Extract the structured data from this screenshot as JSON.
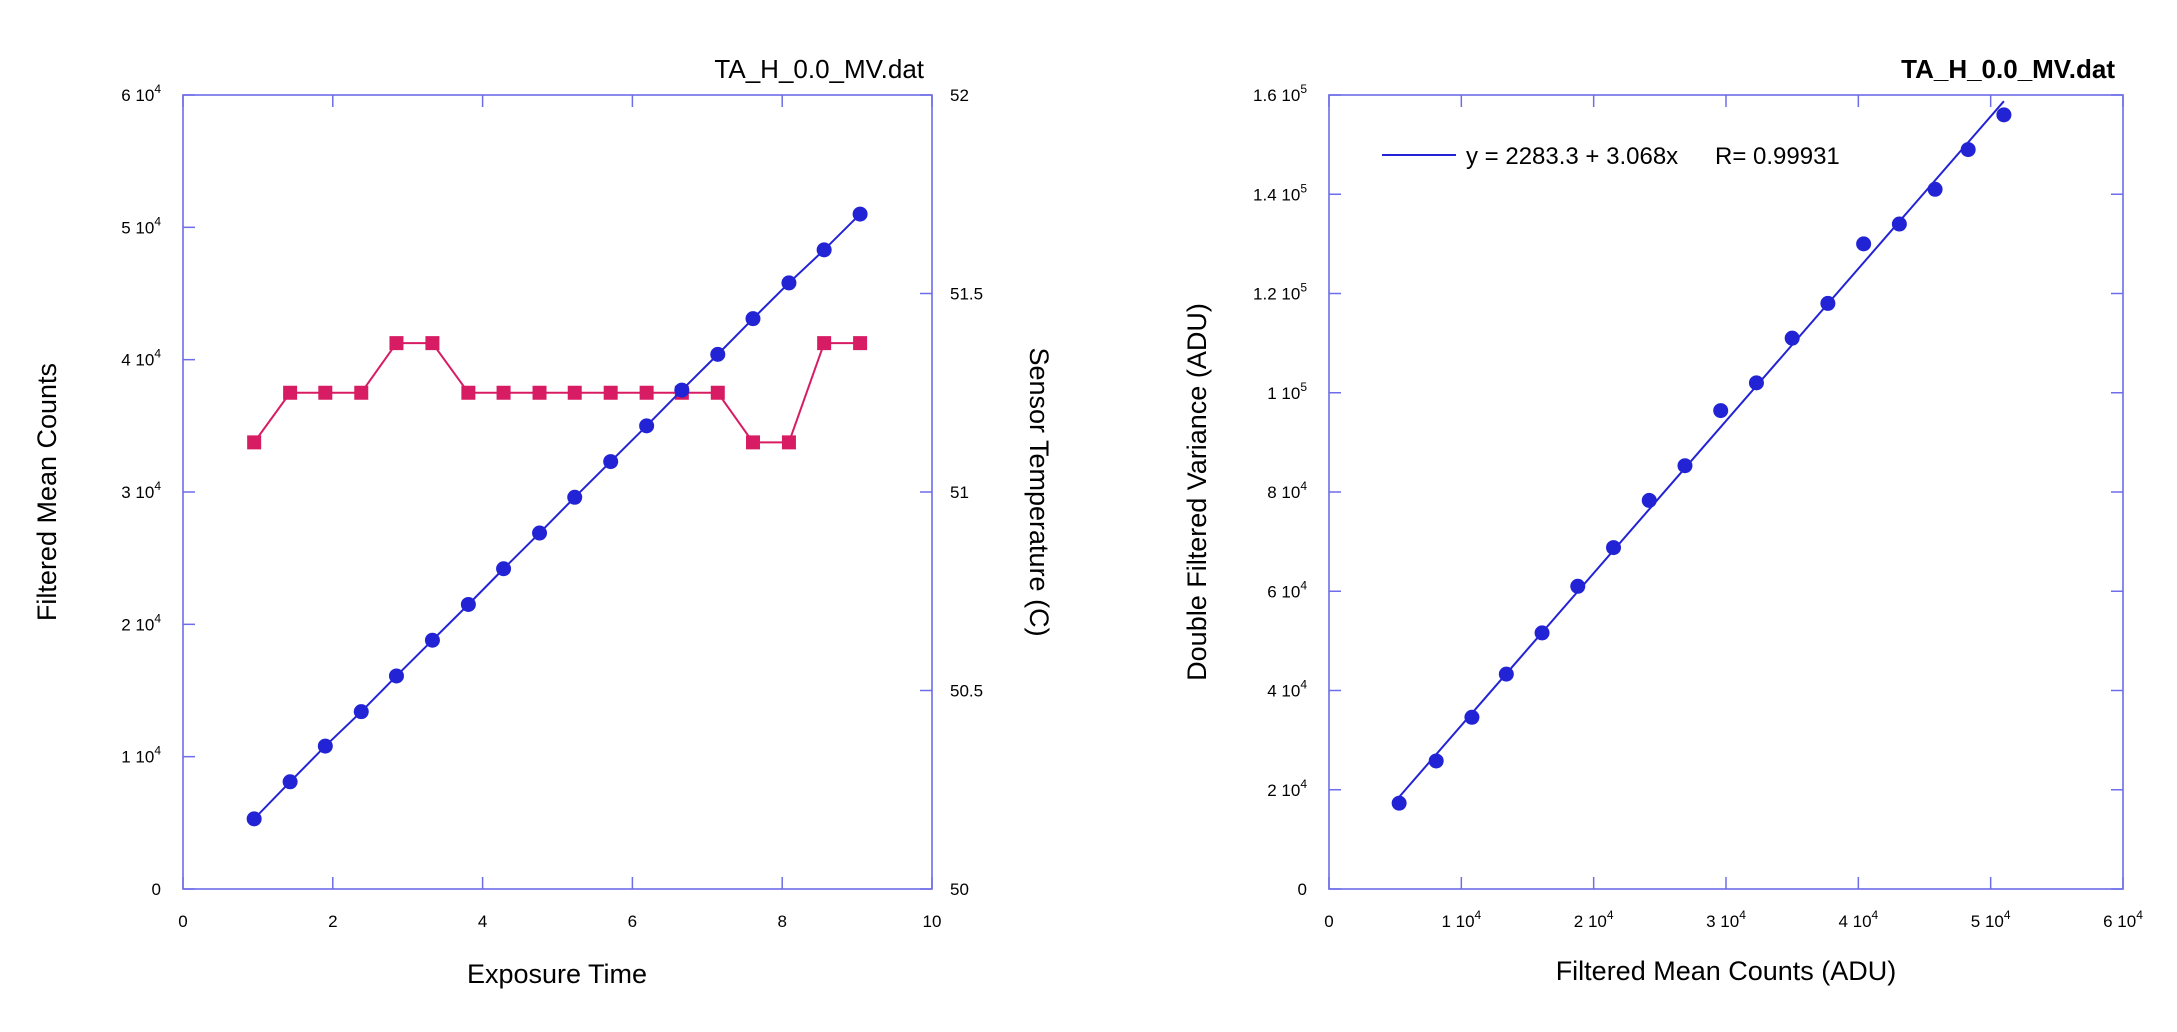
{
  "colors": {
    "frame": "#6d6de8",
    "series_counts": "#2323d6",
    "series_temperature": "#d81c64",
    "fit_line": "#2323d6",
    "fit_text": "#2323d6",
    "text": "#000000"
  },
  "chart_data": [
    {
      "type": "line",
      "title": "TA_H_0.0_MV.dat",
      "xlabel": "Exposure Time",
      "ylabel": "Filtered Mean Counts",
      "y2label": "Sensor Temperature (C)",
      "xlim": [
        0,
        10
      ],
      "ylim": [
        0,
        60000
      ],
      "y2lim": [
        50,
        52
      ],
      "x_ticks": [
        {
          "value": 0,
          "label": "0"
        },
        {
          "value": 2,
          "label": "2"
        },
        {
          "value": 4,
          "label": "4"
        },
        {
          "value": 6,
          "label": "6"
        },
        {
          "value": 8,
          "label": "8"
        },
        {
          "value": 10,
          "label": "10"
        }
      ],
      "y_ticks": [
        {
          "value": 0,
          "mantissa": "0",
          "exp": ""
        },
        {
          "value": 10000,
          "mantissa": "1 10",
          "exp": "4"
        },
        {
          "value": 20000,
          "mantissa": "2 10",
          "exp": "4"
        },
        {
          "value": 30000,
          "mantissa": "3 10",
          "exp": "4"
        },
        {
          "value": 40000,
          "mantissa": "4 10",
          "exp": "4"
        },
        {
          "value": 50000,
          "mantissa": "5 10",
          "exp": "4"
        },
        {
          "value": 60000,
          "mantissa": "6 10",
          "exp": "4"
        }
      ],
      "y2_ticks": [
        {
          "value": 50,
          "label": "50"
        },
        {
          "value": 50.5,
          "label": "50.5"
        },
        {
          "value": 51,
          "label": "51"
        },
        {
          "value": 51.5,
          "label": "51.5"
        },
        {
          "value": 52,
          "label": "52"
        }
      ],
      "series": [
        {
          "name": "Filtered Mean Counts",
          "axis": "left",
          "marker": "circle",
          "x": [
            0.95,
            1.43,
            1.9,
            2.38,
            2.85,
            3.33,
            3.81,
            4.28,
            4.76,
            5.23,
            5.71,
            6.19,
            6.66,
            7.14,
            7.61,
            8.09,
            8.56,
            9.04
          ],
          "y": [
            5300,
            8100,
            10800,
            13400,
            16100,
            18800,
            21500,
            24200,
            26900,
            29600,
            32300,
            35000,
            37700,
            40400,
            43100,
            45800,
            48300,
            51000
          ]
        },
        {
          "name": "Sensor Temperature",
          "axis": "right",
          "marker": "square",
          "x": [
            0.95,
            1.43,
            1.9,
            2.38,
            2.85,
            3.33,
            3.81,
            4.28,
            4.76,
            5.23,
            5.71,
            6.19,
            6.66,
            7.14,
            7.61,
            8.09,
            8.56,
            9.04
          ],
          "y": [
            51.125,
            51.25,
            51.25,
            51.25,
            51.375,
            51.375,
            51.25,
            51.25,
            51.25,
            51.25,
            51.25,
            51.25,
            51.25,
            51.25,
            51.125,
            51.125,
            51.375,
            51.375
          ]
        }
      ]
    },
    {
      "type": "scatter",
      "title": "TA_H_0.0_MV.dat",
      "xlabel": "Filtered Mean Counts (ADU)",
      "ylabel": "Double Filtered Variance (ADU)",
      "xlim": [
        0,
        60000
      ],
      "ylim": [
        0,
        160000
      ],
      "x_ticks": [
        {
          "value": 0,
          "mantissa": "0",
          "exp": ""
        },
        {
          "value": 10000,
          "mantissa": "1 10",
          "exp": "4"
        },
        {
          "value": 20000,
          "mantissa": "2 10",
          "exp": "4"
        },
        {
          "value": 30000,
          "mantissa": "3 10",
          "exp": "4"
        },
        {
          "value": 40000,
          "mantissa": "4 10",
          "exp": "4"
        },
        {
          "value": 50000,
          "mantissa": "5 10",
          "exp": "4"
        },
        {
          "value": 60000,
          "mantissa": "6 10",
          "exp": "4"
        }
      ],
      "y_ticks": [
        {
          "value": 0,
          "mantissa": "0",
          "exp": ""
        },
        {
          "value": 20000,
          "mantissa": "2 10",
          "exp": "4"
        },
        {
          "value": 40000,
          "mantissa": "4 10",
          "exp": "4"
        },
        {
          "value": 60000,
          "mantissa": "6 10",
          "exp": "4"
        },
        {
          "value": 80000,
          "mantissa": "8 10",
          "exp": "4"
        },
        {
          "value": 100000,
          "mantissa": "1 10",
          "exp": "5"
        },
        {
          "value": 120000,
          "mantissa": "1.2 10",
          "exp": "5"
        },
        {
          "value": 140000,
          "mantissa": "1.4 10",
          "exp": "5"
        },
        {
          "value": 160000,
          "mantissa": "1.6 10",
          "exp": "5"
        }
      ],
      "series": [
        {
          "name": "Double Filtered Variance",
          "marker": "circle",
          "x": [
            5300,
            8100,
            10800,
            13400,
            16100,
            18800,
            21500,
            24200,
            26900,
            29600,
            32300,
            35000,
            37700,
            40400,
            43100,
            45800,
            48300,
            51000
          ],
          "y": [
            17300,
            25800,
            34600,
            43300,
            51600,
            61000,
            68800,
            78300,
            85300,
            96400,
            102000,
            111000,
            118000,
            130000,
            134000,
            141000,
            149000,
            156000
          ]
        }
      ],
      "fit": {
        "intercept": 2283.3,
        "slope": 3.068,
        "x_range": [
          5300,
          51000
        ],
        "label": "y = 2283.3 + 3.068x",
        "r_label": "R= 0.99931"
      }
    }
  ]
}
